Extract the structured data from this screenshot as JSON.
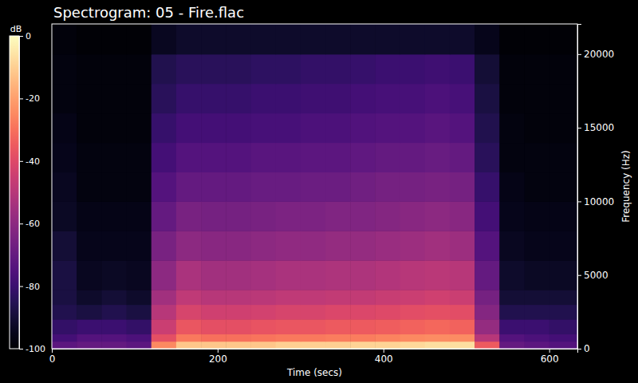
{
  "chart_data": {
    "type": "heatmap",
    "title": "Spectrogram: 05 - Fire.flac",
    "x_label": "Time (secs)",
    "y_label": "Frequency (Hz)",
    "colorbar_label": "dB",
    "xlim": [
      0,
      634
    ],
    "ylim": [
      0,
      22050
    ],
    "xticks": [
      0,
      200,
      400,
      600
    ],
    "yticks": [
      0,
      5000,
      10000,
      15000,
      20000
    ],
    "colorbar_range": [
      -100,
      0
    ],
    "colorbar_ticks": [
      0,
      -20,
      -40,
      -60,
      -80,
      -100
    ],
    "x_edges": [
      0,
      30,
      60,
      90,
      120,
      150,
      180,
      210,
      240,
      270,
      300,
      330,
      360,
      390,
      420,
      450,
      480,
      510,
      540,
      570,
      600,
      634
    ],
    "y_edges": [
      0,
      500,
      1000,
      2000,
      3000,
      4000,
      6000,
      8000,
      10000,
      12000,
      14000,
      16000,
      18000,
      20000,
      22050
    ],
    "cells": [
      [
        -72,
        -70,
        -70,
        -72,
        -25,
        -12,
        -12,
        -12,
        -12,
        -10,
        -10,
        -10,
        -9,
        -9,
        -8,
        -7,
        -7,
        -35,
        -70,
        -72,
        -74
      ],
      [
        -78,
        -74,
        -74,
        -76,
        -38,
        -28,
        -30,
        -30,
        -29,
        -28,
        -28,
        -27,
        -27,
        -26,
        -25,
        -24,
        -24,
        -50,
        -74,
        -76,
        -78
      ],
      [
        -82,
        -80,
        -80,
        -82,
        -45,
        -36,
        -38,
        -38,
        -37,
        -36,
        -36,
        -35,
        -35,
        -34,
        -33,
        -32,
        -33,
        -58,
        -80,
        -80,
        -82
      ],
      [
        -86,
        -88,
        -86,
        -88,
        -50,
        -42,
        -44,
        -44,
        -43,
        -42,
        -42,
        -41,
        -41,
        -40,
        -39,
        -38,
        -39,
        -62,
        -86,
        -86,
        -86
      ],
      [
        -88,
        -92,
        -90,
        -92,
        -55,
        -48,
        -50,
        -50,
        -49,
        -48,
        -48,
        -47,
        -47,
        -46,
        -45,
        -44,
        -45,
        -66,
        -90,
        -90,
        -90
      ],
      [
        -88,
        -94,
        -93,
        -94,
        -60,
        -53,
        -55,
        -55,
        -54,
        -53,
        -53,
        -52,
        -52,
        -51,
        -50,
        -49,
        -50,
        -70,
        -92,
        -93,
        -93
      ],
      [
        -90,
        -95,
        -95,
        -95,
        -65,
        -60,
        -61,
        -61,
        -60,
        -59,
        -59,
        -58,
        -58,
        -57,
        -56,
        -55,
        -56,
        -74,
        -94,
        -95,
        -95
      ],
      [
        -93,
        -96,
        -96,
        -96,
        -70,
        -65,
        -66,
        -66,
        -65,
        -64,
        -64,
        -63,
        -63,
        -62,
        -61,
        -60,
        -61,
        -78,
        -95,
        -96,
        -96
      ],
      [
        -94,
        -97,
        -97,
        -97,
        -74,
        -70,
        -70,
        -70,
        -69,
        -69,
        -68,
        -68,
        -67,
        -66,
        -66,
        -65,
        -66,
        -81,
        -96,
        -97,
        -97
      ],
      [
        -95,
        -97,
        -97,
        -97,
        -78,
        -74,
        -74,
        -74,
        -73,
        -73,
        -72,
        -72,
        -71,
        -70,
        -70,
        -69,
        -70,
        -84,
        -97,
        -97,
        -97
      ],
      [
        -96,
        -98,
        -98,
        -98,
        -81,
        -78,
        -78,
        -78,
        -77,
        -77,
        -76,
        -76,
        -75,
        -74,
        -74,
        -73,
        -74,
        -86,
        -97,
        -98,
        -98
      ],
      [
        -97,
        -98,
        -98,
        -98,
        -84,
        -81,
        -81,
        -81,
        -80,
        -80,
        -79,
        -79,
        -78,
        -77,
        -77,
        -76,
        -77,
        -88,
        -98,
        -98,
        -98
      ],
      [
        -97,
        -98,
        -98,
        -98,
        -86,
        -84,
        -84,
        -84,
        -83,
        -83,
        -82,
        -82,
        -81,
        -80,
        -80,
        -79,
        -80,
        -90,
        -98,
        -98,
        -98
      ],
      [
        -98,
        -99,
        -99,
        -99,
        -94,
        -92,
        -92,
        -92,
        -92,
        -92,
        -92,
        -92,
        -92,
        -92,
        -92,
        -92,
        -92,
        -95,
        -99,
        -99,
        -99
      ]
    ]
  }
}
